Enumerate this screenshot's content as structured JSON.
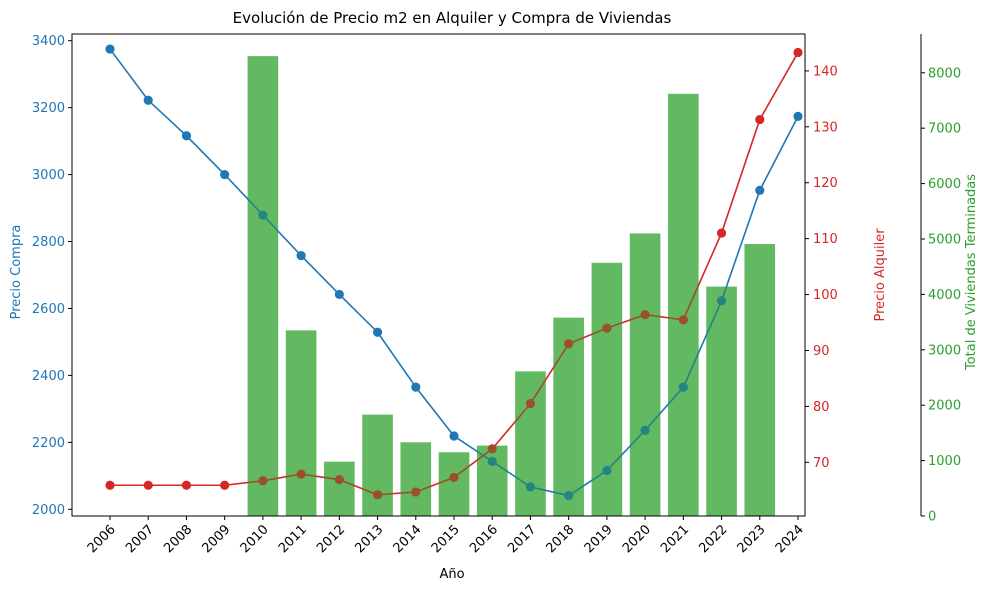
{
  "chart_data": {
    "type": "bar+line",
    "title": "Evolución de Precio m2 en Alquiler y Compra de Viviendas",
    "xlabel": "Año",
    "categories": [
      "2006",
      "2007",
      "2008",
      "2009",
      "2010",
      "2011",
      "2012",
      "2013",
      "2014",
      "2015",
      "2016",
      "2017",
      "2018",
      "2019",
      "2020",
      "2021",
      "2022",
      "2023",
      "2024"
    ],
    "axes": {
      "left": {
        "label": "Precio Compra",
        "color": "#1f77b4",
        "ylim": [
          1980,
          3420
        ],
        "ticks": [
          2000,
          2200,
          2400,
          2600,
          2800,
          3000,
          3200,
          3400
        ]
      },
      "right": {
        "label": "Precio Alquiler",
        "color": "#d62728",
        "ylim": [
          60.4,
          146.6
        ],
        "ticks": [
          70,
          80,
          90,
          100,
          110,
          120,
          130,
          140
        ]
      },
      "right2": {
        "label": "Total de Viviendas Terminadas",
        "color": "#2ca02c",
        "ylim": [
          0,
          8700
        ],
        "ticks": [
          0,
          1000,
          2000,
          3000,
          4000,
          5000,
          6000,
          7000,
          8000
        ]
      }
    },
    "series": [
      {
        "name": "Precio Compra",
        "kind": "line",
        "axis": "left",
        "color": "#1f77b4",
        "values": [
          3375,
          3222,
          3116,
          3000,
          2879,
          2758,
          2642,
          2529,
          2365,
          2219,
          2143,
          2067,
          2041,
          2116,
          2236,
          2365,
          2623,
          2953,
          3174
        ]
      },
      {
        "name": "Precio Alquiler",
        "kind": "line",
        "axis": "right",
        "color": "#d62728",
        "values": [
          65.9,
          65.9,
          65.9,
          65.9,
          66.7,
          67.9,
          66.9,
          64.2,
          64.7,
          67.3,
          72.4,
          80.5,
          91.2,
          94.0,
          96.4,
          95.5,
          111.0,
          131.3,
          143.3
        ]
      },
      {
        "name": "Total de Viviendas Terminadas",
        "kind": "bar",
        "axis": "right2",
        "color": "#2ca02c",
        "values": [
          null,
          null,
          null,
          null,
          8300,
          3350,
          980,
          1830,
          1330,
          1150,
          1270,
          2610,
          3580,
          4570,
          5100,
          7620,
          4140,
          4910,
          null
        ]
      }
    ]
  }
}
